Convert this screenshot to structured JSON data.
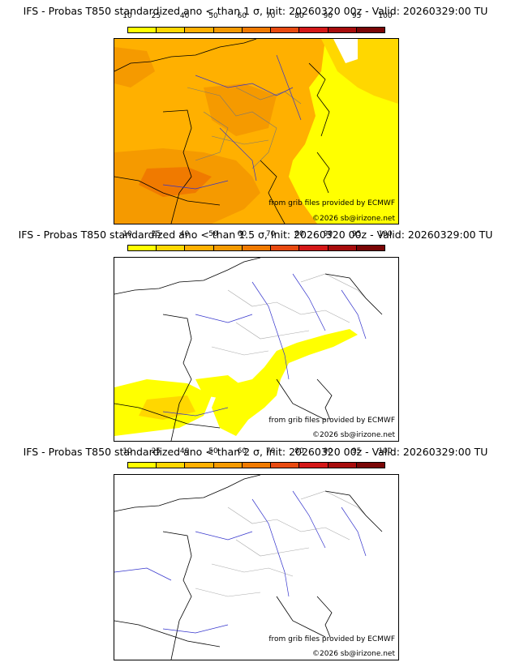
{
  "panels": [
    {
      "title": "IFS - Probas T850  standardized ano < than 1 σ, Init: 20260320 00z - Valid: 20260329:00 TU",
      "credit_source": "from grib files provided by ECMWF",
      "credit_copyright": "©2026 sb@irizone.net"
    },
    {
      "title": "IFS - Probas T850  standardized ano < than 1.5 σ, Init: 20260320 00z - Valid: 20260329:00 TU",
      "credit_source": "from grib files provided by ECMWF",
      "credit_copyright": "©2026 sb@irizone.net"
    },
    {
      "title": "IFS - Probas T850  standardized ano < than 2 σ, Init: 20260320 00z - Valid: 20260329:00 TU",
      "credit_source": "from grib files provided by ECMWF",
      "credit_copyright": "©2026 sb@irizone.net"
    }
  ],
  "colorbar": {
    "ticks": [
      "10",
      "25",
      "40",
      "50",
      "60",
      "70",
      "80",
      "90",
      "95",
      "100"
    ],
    "colors": [
      "#ffff00",
      "#ffd700",
      "#ffb000",
      "#f59a00",
      "#f07a00",
      "#e84a10",
      "#d41818",
      "#a80c0c",
      "#7a0606"
    ]
  },
  "colors": {
    "land_boundary": "#555555",
    "coastline": "#000000",
    "rivers": "#3333cc",
    "regions": "#aaaaaa"
  }
}
